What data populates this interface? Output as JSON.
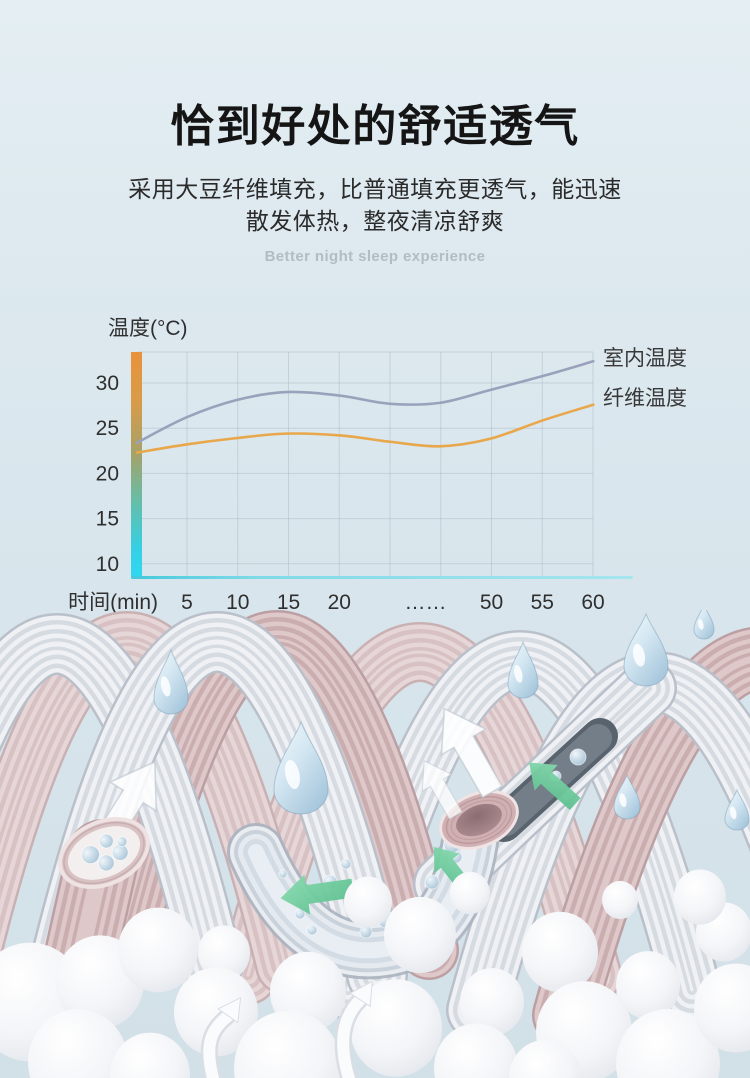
{
  "header": {
    "title": "恰到好处的舒适透气",
    "subtitle_line1": "采用大豆纤维填充，比普通填充更透气，能迅速",
    "subtitle_line2": "散发体热，整夜清凉舒爽",
    "caption_en": "Better night sleep experience"
  },
  "chart_data": {
    "type": "line",
    "title": "",
    "ylabel": "温度(°C)",
    "xlabel": "时间(min)",
    "yticks": [
      30,
      25,
      20,
      15,
      10
    ],
    "ylim": [
      9,
      33.5
    ],
    "xticks": [
      {
        "label": "5",
        "slot": 0
      },
      {
        "label": "10",
        "slot": 1
      },
      {
        "label": "15",
        "slot": 2
      },
      {
        "label": "20",
        "slot": 3
      },
      {
        "label": "……",
        "slot": 4.7
      },
      {
        "label": "50",
        "slot": 6
      },
      {
        "label": "55",
        "slot": 7
      },
      {
        "label": "60",
        "slot": 8
      }
    ],
    "axis_break_note": "x axis breaks between 20 and 50 min, shown as ……",
    "grid": true,
    "legend_position": "right",
    "series": [
      {
        "name": "室内温度",
        "color": "#99a2bb",
        "points": [
          [
            0,
            23.4
          ],
          [
            0.1,
            26.2
          ],
          [
            0.2,
            28.1
          ],
          [
            0.3,
            29.0
          ],
          [
            0.41,
            28.6
          ],
          [
            0.51,
            27.7
          ],
          [
            0.61,
            27.8
          ],
          [
            0.71,
            29.2
          ],
          [
            0.82,
            30.8
          ],
          [
            0.92,
            32.4
          ]
        ]
      },
      {
        "name": "纤维温度",
        "color": "#e8a74b",
        "points": [
          [
            0,
            22.3
          ],
          [
            0.1,
            23.2
          ],
          [
            0.2,
            23.9
          ],
          [
            0.3,
            24.4
          ],
          [
            0.41,
            24.2
          ],
          [
            0.51,
            23.5
          ],
          [
            0.61,
            23.0
          ],
          [
            0.71,
            23.8
          ],
          [
            0.82,
            25.9
          ],
          [
            0.92,
            27.6
          ]
        ]
      }
    ],
    "styles": {
      "grid_color": "#aab6c2",
      "tick_text_color": "#2f2f2f",
      "legend_text_color": "#383838",
      "axis_line_color": "#55cede",
      "y_axis_bar_gradient": [
        "#e8923a",
        "#d99b49",
        "#a5a268",
        "#62bfad",
        "#2fd9f0"
      ]
    }
  },
  "illustration": {
    "description": "大豆纤维纤维管透气示意：纤维管、水滴、气泡球与气流箭头",
    "elements": [
      "fiber-tube",
      "water-droplet",
      "foam-sphere",
      "airflow-arrow",
      "fiber-cross-section"
    ],
    "colors": {
      "fiber_pink": "#dfc8c9",
      "fiber_white": "#eff1f5",
      "droplet": "#c6dcea",
      "sphere": "#f5f6f9",
      "arrow_green": "#6fcfa0",
      "arrow_white": "#ffffff"
    }
  }
}
